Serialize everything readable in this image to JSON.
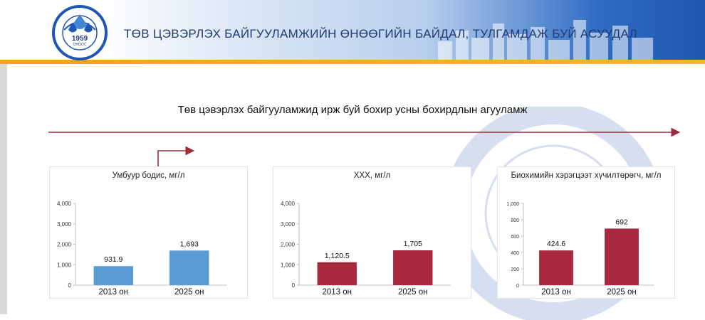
{
  "header": {
    "title": "ТӨВ ЦЭВЭРЛЭХ БАЙГУУЛАМЖИЙН ӨНӨӨГИЙН БАЙДАЛ, ТУЛГАМДАЖ БУЙ АСУУДАЛ",
    "logo": {
      "arc_top": "УС СУВГИЙН УДИРДАХ ГАЗАР",
      "year": "1959",
      "year_sub": "ОНООС",
      "arc_bottom": "УЛААНБААТАР ХОТ"
    },
    "colors": {
      "brand_blue": "#1f56b0",
      "accent_orange": "#f2a21b"
    }
  },
  "subtitle": "Төв цэвэрлэх байгууламжид ирж буй бохир усны бохирдлын агууламж",
  "colors": {
    "arrow": "#9e2b3c",
    "bar_blue": "#5b9bd5",
    "bar_red": "#a8293f"
  },
  "chart_data": [
    {
      "type": "bar",
      "title": "Умбуур бодис, мг/л",
      "categories": [
        "2013 он",
        "2025 он"
      ],
      "values": [
        931.9,
        1693
      ],
      "value_labels": [
        "931.9",
        "1,693"
      ],
      "ylim": [
        0,
        4000
      ],
      "yticks": [
        0,
        1000,
        2000,
        3000,
        4000
      ],
      "ytick_labels": [
        "0",
        "1,000",
        "2,000",
        "3,000",
        "4,000"
      ],
      "color": "#5b9bd5",
      "grid": false
    },
    {
      "type": "bar",
      "title": "ХХХ, мг/л",
      "categories": [
        "2013 он",
        "2025 он"
      ],
      "values": [
        1120.5,
        1705
      ],
      "value_labels": [
        "1,120.5",
        "1,705"
      ],
      "ylim": [
        0,
        4000
      ],
      "yticks": [
        0,
        1000,
        2000,
        3000,
        4000
      ],
      "ytick_labels": [
        "0",
        "1,000",
        "2,000",
        "3,000",
        "4,000"
      ],
      "color": "#a8293f",
      "grid": false
    },
    {
      "type": "bar",
      "title": "Биохимийн хэрэгцээт хүчилтөрөгч, мг/л",
      "categories": [
        "2013 он",
        "2025 он"
      ],
      "values": [
        424.6,
        692
      ],
      "value_labels": [
        "424.6",
        "692"
      ],
      "ylim": [
        0,
        1000
      ],
      "yticks": [
        0,
        200,
        400,
        600,
        800,
        1000
      ],
      "ytick_labels": [
        "0",
        "200",
        "400",
        "600",
        "800",
        "1,000"
      ],
      "color": "#a8293f",
      "grid": false
    }
  ]
}
